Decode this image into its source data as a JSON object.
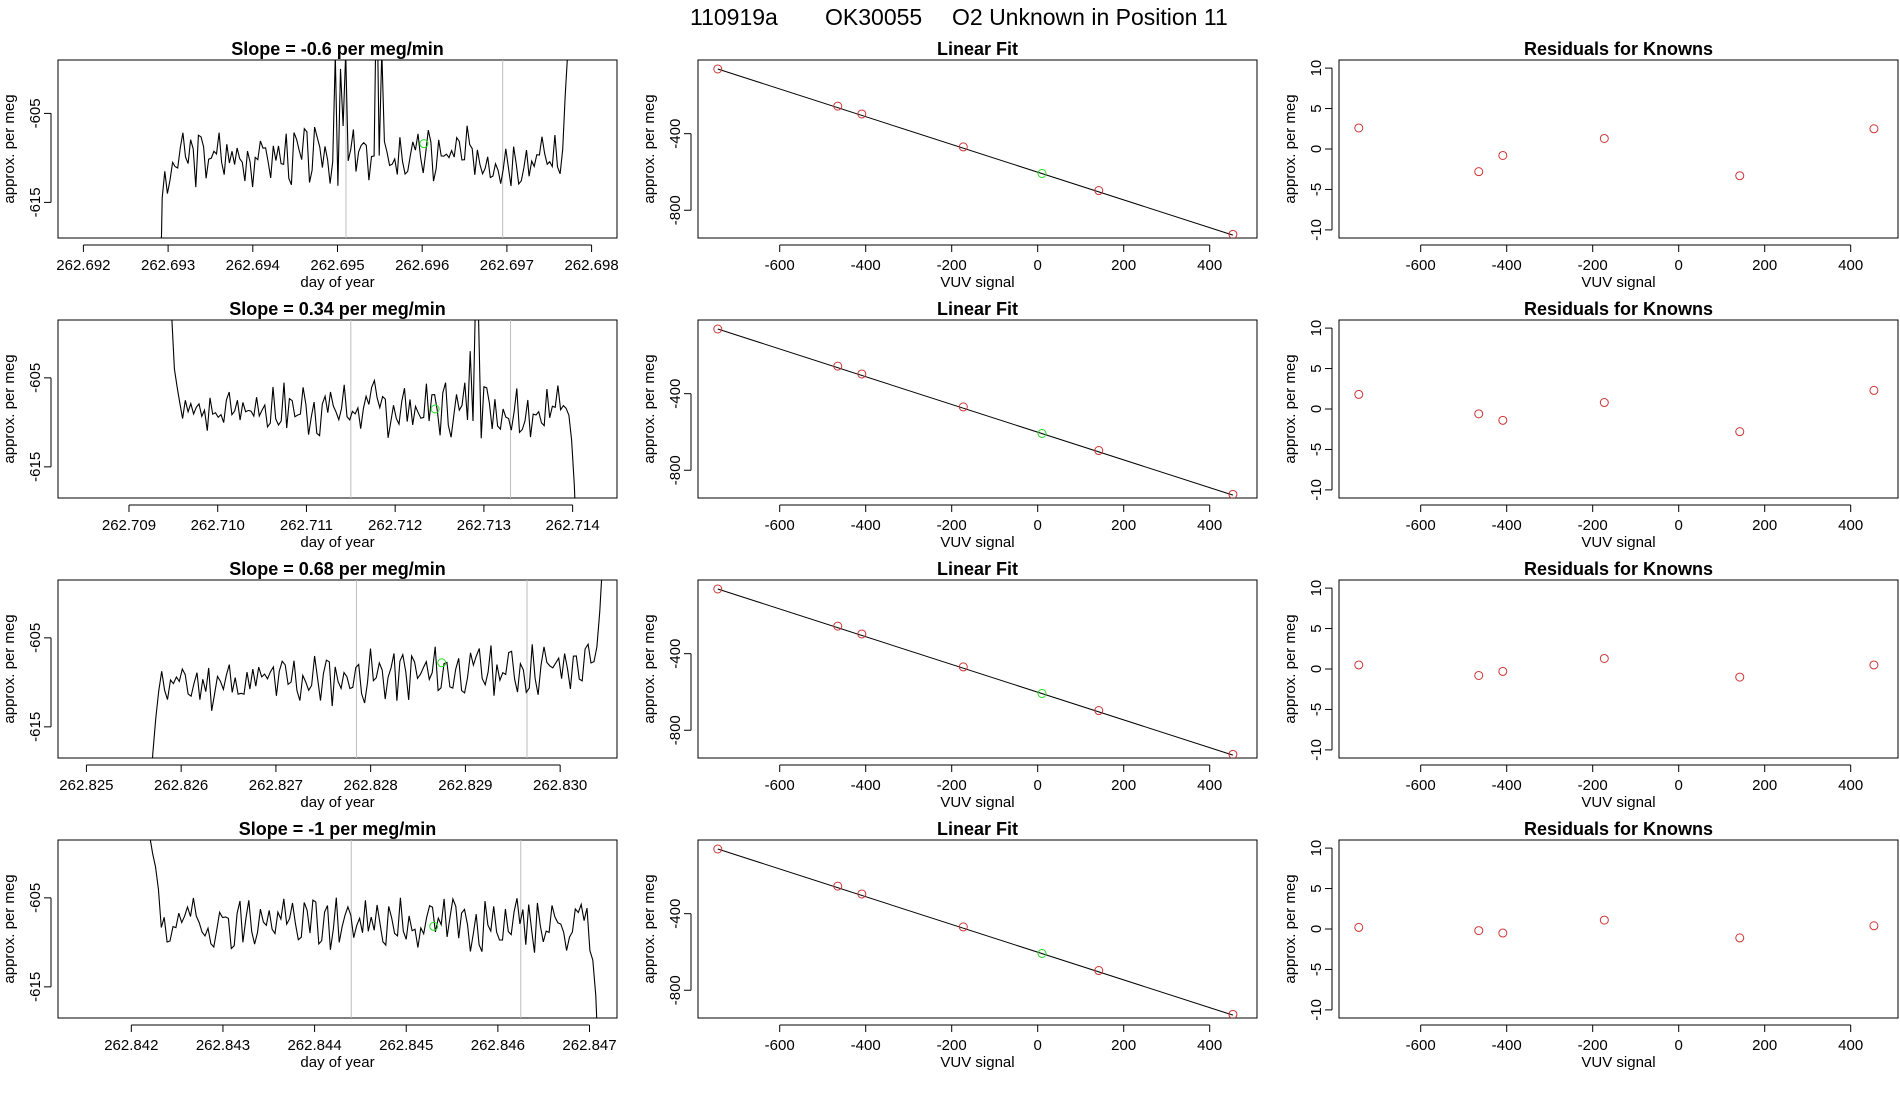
{
  "figure": {
    "title_parts": [
      "110919a",
      "OK30055",
      "O2 Unknown in Position  11"
    ]
  },
  "colors": {
    "line": "#000000",
    "marker_known": "#cd3333",
    "marker_unknown": "#22dd22",
    "vline": "#bebebe",
    "frame": "#000000"
  },
  "chart_data": [
    {
      "type": "line",
      "title": "Slope =  -0.6  per meg/min",
      "xlabel": "day of year",
      "ylabel": "approx. per meg",
      "xlim": [
        262.6917,
        262.6983
      ],
      "ylim": [
        -619,
        -599
      ],
      "xticks": [
        "262.692",
        "262.693",
        "262.694",
        "262.695",
        "262.696",
        "262.697",
        "262.698"
      ],
      "yticks": [
        "-605",
        "-615"
      ],
      "vlines": [
        262.6951,
        262.69695
      ],
      "series_start": 262.6929,
      "series_end": 262.69775,
      "samples": 160,
      "center": -609.8,
      "amplitude": 2.4,
      "seed": 3,
      "head": [
        -630,
        -614.5,
        -611.5,
        -614,
        -612.5,
        -610.5
      ],
      "tail": [
        -603,
        -598,
        -594
      ],
      "spikes": [
        [
          0.43,
          -598.5
        ],
        [
          0.44,
          -600.0
        ],
        [
          0.45,
          -598.2
        ],
        [
          0.53,
          -589
        ],
        [
          0.54,
          -598
        ]
      ],
      "green_point": [
        262.69602,
        -608.4
      ]
    },
    {
      "type": "scatter",
      "title": "Linear Fit",
      "xlabel": "VUV signal",
      "ylabel": "approx. per meg",
      "xlim": [
        -790,
        510
      ],
      "ylim": [
        -945,
        -15
      ],
      "xticks": [
        -600,
        -400,
        -200,
        0,
        200,
        400
      ],
      "yticks": [
        -400,
        -800
      ],
      "fit_line": [
        [
          -744,
          -62
        ],
        [
          454,
          -930
        ]
      ],
      "known_points": [
        [
          -744,
          -62
        ],
        [
          -465,
          -256
        ],
        [
          -409,
          -297
        ],
        [
          -173,
          -469
        ],
        [
          142,
          -697
        ],
        [
          454,
          -926
        ]
      ],
      "unknown_point": [
        10,
        -608
      ]
    },
    {
      "type": "scatter",
      "title": "Residuals for Knowns",
      "xlabel": "VUV signal",
      "ylabel": "approx. per meg",
      "xlim": [
        -790,
        510
      ],
      "ylim": [
        -11,
        11
      ],
      "xticks": [
        -600,
        -400,
        -200,
        0,
        200,
        400
      ],
      "yticks": [
        10,
        5,
        0,
        -5,
        -10
      ],
      "points": [
        [
          -744,
          2.6
        ],
        [
          -465,
          -2.8
        ],
        [
          -409,
          -0.8
        ],
        [
          -173,
          1.3
        ],
        [
          142,
          -3.3
        ],
        [
          454,
          2.5
        ]
      ]
    },
    {
      "type": "line",
      "title": "Slope =  0.34  per meg/min",
      "xlabel": "day of year",
      "ylabel": "approx. per meg",
      "xlim": [
        262.7082,
        262.7145
      ],
      "ylim": [
        -618.5,
        -598.5
      ],
      "xticks": [
        "262.709",
        "262.710",
        "262.711",
        "262.712",
        "262.713",
        "262.714"
      ],
      "yticks": [
        "-605",
        "-615"
      ],
      "vlines": [
        262.7115,
        262.7133
      ],
      "series_start": 262.70945,
      "series_end": 262.71405,
      "samples": 150,
      "center": -608.5,
      "amplitude": 2.4,
      "seed": 7,
      "head": [
        -592,
        -598,
        -604,
        -606
      ],
      "tail": [
        -612,
        -617,
        -625
      ],
      "spikes": [
        [
          0.74,
          -602
        ],
        [
          0.75,
          -595
        ],
        [
          0.76,
          -598
        ],
        [
          0.77,
          -606
        ]
      ],
      "green_point": [
        262.71245,
        -608.5
      ]
    },
    {
      "type": "scatter",
      "title": "Linear Fit",
      "xlabel": "VUV signal",
      "ylabel": "approx. per meg",
      "xlim": [
        -790,
        510
      ],
      "ylim": [
        -945,
        -15
      ],
      "xticks": [
        -600,
        -400,
        -200,
        0,
        200,
        400
      ],
      "yticks": [
        -400,
        -800
      ],
      "fit_line": [
        [
          -744,
          -62
        ],
        [
          454,
          -930
        ]
      ],
      "known_points": [
        [
          -744,
          -62
        ],
        [
          -465,
          -256
        ],
        [
          -409,
          -297
        ],
        [
          -173,
          -469
        ],
        [
          142,
          -697
        ],
        [
          454,
          -926
        ]
      ],
      "unknown_point": [
        10,
        -608
      ]
    },
    {
      "type": "scatter",
      "title": "Residuals for Knowns",
      "xlabel": "VUV signal",
      "ylabel": "approx. per meg",
      "xlim": [
        -790,
        510
      ],
      "ylim": [
        -11,
        11
      ],
      "xticks": [
        -600,
        -400,
        -200,
        0,
        200,
        400
      ],
      "yticks": [
        10,
        5,
        0,
        -5,
        -10
      ],
      "points": [
        [
          -744,
          1.8
        ],
        [
          -465,
          -0.6
        ],
        [
          -409,
          -1.4
        ],
        [
          -173,
          0.8
        ],
        [
          142,
          -2.8
        ],
        [
          454,
          2.3
        ]
      ]
    },
    {
      "type": "line",
      "title": "Slope =  0.68  per meg/min",
      "xlabel": "day of year",
      "ylabel": "approx. per meg",
      "xlim": [
        262.8247,
        262.8306
      ],
      "ylim": [
        -618.5,
        -598.5
      ],
      "xticks": [
        "262.825",
        "262.826",
        "262.827",
        "262.828",
        "262.829",
        "262.830"
      ],
      "yticks": [
        "-605",
        "-615"
      ],
      "vlines": [
        262.82785,
        262.82965
      ],
      "series_start": 262.82567,
      "series_end": 262.83045,
      "samples": 155,
      "center": -609.3,
      "amplitude": 2.2,
      "seed": 11,
      "head": [
        -624,
        -618,
        -614,
        -611
      ],
      "tail": [
        -606,
        -602,
        -596
      ],
      "spikes": [],
      "trend": 2.4,
      "green_point": [
        262.82875,
        -607.8
      ]
    },
    {
      "type": "scatter",
      "title": "Linear Fit",
      "xlabel": "VUV signal",
      "ylabel": "approx. per meg",
      "xlim": [
        -790,
        510
      ],
      "ylim": [
        -945,
        -15
      ],
      "xticks": [
        -600,
        -400,
        -200,
        0,
        200,
        400
      ],
      "yticks": [
        -400,
        -800
      ],
      "fit_line": [
        [
          -744,
          -62
        ],
        [
          454,
          -930
        ]
      ],
      "known_points": [
        [
          -744,
          -62
        ],
        [
          -465,
          -256
        ],
        [
          -409,
          -297
        ],
        [
          -173,
          -469
        ],
        [
          142,
          -697
        ],
        [
          454,
          -926
        ]
      ],
      "unknown_point": [
        10,
        -608
      ]
    },
    {
      "type": "scatter",
      "title": "Residuals for Knowns",
      "xlabel": "VUV signal",
      "ylabel": "approx. per meg",
      "xlim": [
        -790,
        510
      ],
      "ylim": [
        -11,
        11
      ],
      "xticks": [
        -600,
        -400,
        -200,
        0,
        200,
        400
      ],
      "yticks": [
        10,
        5,
        0,
        -5,
        -10
      ],
      "points": [
        [
          -744,
          0.5
        ],
        [
          -465,
          -0.8
        ],
        [
          -409,
          -0.3
        ],
        [
          -173,
          1.3
        ],
        [
          142,
          -1.0
        ],
        [
          454,
          0.5
        ]
      ]
    },
    {
      "type": "line",
      "title": "Slope =  -1  per meg/min",
      "xlabel": "day of year",
      "ylabel": "approx. per meg",
      "xlim": [
        262.8412,
        262.8473
      ],
      "ylim": [
        -618.5,
        -598.5
      ],
      "xticks": [
        "262.842",
        "262.843",
        "262.844",
        "262.845",
        "262.846",
        "262.847"
      ],
      "yticks": [
        "-605",
        "-615"
      ],
      "vlines": [
        262.8444,
        262.84625
      ],
      "series_start": 262.8422,
      "series_end": 262.8471,
      "samples": 155,
      "center": -607.8,
      "amplitude": 2.4,
      "seed": 19,
      "head": [
        -598,
        -600,
        -601.5,
        -604
      ],
      "tail": [
        -612,
        -616,
        -624
      ],
      "spikes": [],
      "green_point": [
        262.8453,
        -608.2
      ]
    },
    {
      "type": "scatter",
      "title": "Linear Fit",
      "xlabel": "VUV signal",
      "ylabel": "approx. per meg",
      "xlim": [
        -790,
        510
      ],
      "ylim": [
        -945,
        -15
      ],
      "xticks": [
        -600,
        -400,
        -200,
        0,
        200,
        400
      ],
      "yticks": [
        -400,
        -800
      ],
      "fit_line": [
        [
          -744,
          -62
        ],
        [
          454,
          -930
        ]
      ],
      "known_points": [
        [
          -744,
          -62
        ],
        [
          -465,
          -256
        ],
        [
          -409,
          -297
        ],
        [
          -173,
          -469
        ],
        [
          142,
          -697
        ],
        [
          454,
          -926
        ]
      ],
      "unknown_point": [
        10,
        -608
      ]
    },
    {
      "type": "scatter",
      "title": "Residuals for Knowns",
      "xlabel": "VUV signal",
      "ylabel": "approx. per meg",
      "xlim": [
        -790,
        510
      ],
      "ylim": [
        -11,
        11
      ],
      "xticks": [
        -600,
        -400,
        -200,
        0,
        200,
        400
      ],
      "yticks": [
        10,
        5,
        0,
        -5,
        -10
      ],
      "points": [
        [
          -744,
          0.2
        ],
        [
          -465,
          -0.2
        ],
        [
          -409,
          -0.5
        ],
        [
          -173,
          1.1
        ],
        [
          142,
          -1.1
        ],
        [
          454,
          0.4
        ]
      ]
    }
  ]
}
